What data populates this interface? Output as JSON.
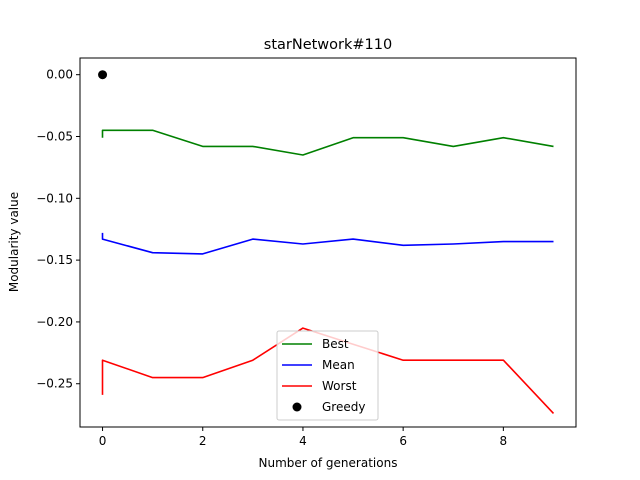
{
  "chart_data": {
    "type": "line",
    "title": "starNetwork#110",
    "xlabel": "Number of generations",
    "ylabel": "Modularity value",
    "xlim": [
      -0.45,
      9.45
    ],
    "ylim": [
      -0.285,
      0.0135
    ],
    "xticks": [
      0,
      2,
      4,
      6,
      8
    ],
    "xtick_labels": [
      "0",
      "2",
      "4",
      "6",
      "8"
    ],
    "yticks": [
      0.0,
      -0.05,
      -0.1,
      -0.15,
      -0.2,
      -0.25
    ],
    "ytick_labels": [
      "0.00",
      "−0.05",
      "−0.10",
      "−0.15",
      "−0.20",
      "−0.25"
    ],
    "grid": false,
    "legend_position": "lower center",
    "series": [
      {
        "name": "Best",
        "color": "#008000",
        "marker": "none",
        "x": [
          0,
          0,
          1,
          2,
          3,
          4,
          5,
          6,
          7,
          8,
          9
        ],
        "y": [
          -0.051,
          -0.045,
          -0.045,
          -0.058,
          -0.058,
          -0.065,
          -0.051,
          -0.051,
          -0.058,
          -0.051,
          -0.058
        ]
      },
      {
        "name": "Mean",
        "color": "#0000ff",
        "marker": "none",
        "x": [
          0,
          0,
          1,
          2,
          3,
          4,
          5,
          6,
          7,
          8,
          9
        ],
        "y": [
          -0.128,
          -0.133,
          -0.144,
          -0.145,
          -0.133,
          -0.137,
          -0.133,
          -0.138,
          -0.137,
          -0.135,
          -0.135
        ]
      },
      {
        "name": "Worst",
        "color": "#ff0000",
        "marker": "none",
        "x": [
          0,
          0,
          1,
          2,
          3,
          4,
          5,
          6,
          7,
          8,
          9
        ],
        "y": [
          -0.259,
          -0.231,
          -0.245,
          -0.245,
          -0.231,
          -0.205,
          -0.218,
          -0.231,
          -0.231,
          -0.231,
          -0.274
        ]
      },
      {
        "name": "Greedy",
        "color": "#000000",
        "marker": "circle",
        "x": [
          0
        ],
        "y": [
          0.0
        ]
      }
    ]
  }
}
